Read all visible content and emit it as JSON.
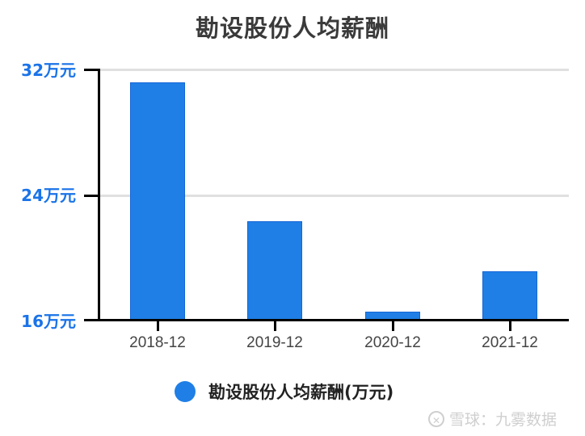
{
  "chart_data": {
    "type": "bar",
    "title": "勘设股份人均薪酬",
    "categories": [
      "2018-12",
      "2019-12",
      "2020-12",
      "2021-12"
    ],
    "series": [
      {
        "name": "勘设股份人均薪酬(万元)",
        "values": [
          31.2,
          22.3,
          16.5,
          19.1
        ],
        "color": "#1f7fe6"
      }
    ],
    "xlabel": "",
    "ylabel": "",
    "ylim": [
      16,
      32
    ],
    "yticks": [
      16,
      24,
      32
    ],
    "ytick_labels": [
      "16万元",
      "24万元",
      "32万元"
    ],
    "grid": true,
    "legend_position": "bottom"
  },
  "title": "勘设股份人均薪酬",
  "y_axis": {
    "labels": [
      {
        "text": "32万元",
        "value": 32
      },
      {
        "text": "24万元",
        "value": 24
      },
      {
        "text": "16万元",
        "value": 16
      }
    ]
  },
  "x_axis": {
    "labels": [
      "2018-12",
      "2019-12",
      "2020-12",
      "2021-12"
    ]
  },
  "legend": {
    "label": "勘设股份人均薪酬(万元)",
    "color": "#1f7fe6"
  },
  "watermark": {
    "text": "雪球：九雾数据"
  }
}
